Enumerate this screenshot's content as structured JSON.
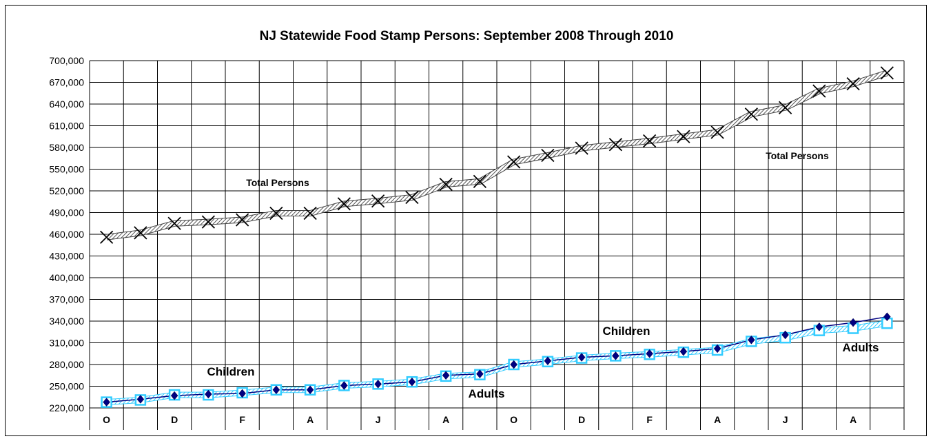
{
  "chart_data": {
    "type": "line",
    "title": "NJ Statewide Food Stamp Persons: September 2008 Through 2010",
    "xlabel": "",
    "ylabel": "",
    "ylim": [
      220000,
      700000
    ],
    "yticks": [
      "700,000",
      "670,000",
      "640,000",
      "610,000",
      "580,000",
      "550,000",
      "520,000",
      "490,000",
      "460,000",
      "430,000",
      "400,000",
      "370,000",
      "340,000",
      "310,000",
      "280,000",
      "250,000",
      "220,000"
    ],
    "categories": [
      "O",
      "",
      "D",
      "",
      "F",
      "",
      "A",
      "",
      "J",
      "",
      "A",
      "",
      "O",
      "",
      "D",
      "",
      "F",
      "",
      "A",
      "",
      "J",
      "",
      "A",
      ""
    ],
    "grid": true,
    "legend": "none",
    "series": [
      {
        "name": "Total Persons",
        "color": "#888888",
        "marker": "x",
        "values": [
          456000,
          462000,
          475000,
          477000,
          480000,
          489000,
          489000,
          502000,
          506000,
          511000,
          529000,
          533000,
          560000,
          569000,
          579000,
          584000,
          589000,
          595000,
          601000,
          626000,
          635000,
          658000,
          668000,
          683000
        ]
      },
      {
        "name": "Children",
        "color": "#000080",
        "marker": "diamond",
        "values": [
          228000,
          232000,
          237000,
          239000,
          240000,
          245000,
          245000,
          251000,
          253000,
          256000,
          265000,
          267000,
          280000,
          285000,
          290000,
          292000,
          295000,
          298000,
          302000,
          314000,
          321000,
          332000,
          338000,
          346000
        ]
      },
      {
        "name": "Adults",
        "color": "#33ccff",
        "marker": "square",
        "values": [
          228000,
          231000,
          238000,
          238000,
          241000,
          245000,
          245000,
          251000,
          253000,
          256000,
          264000,
          266000,
          280000,
          284000,
          289000,
          292000,
          294000,
          297000,
          300000,
          312000,
          317000,
          327000,
          330000,
          337000
        ]
      }
    ],
    "annotations": [
      {
        "text": "Total Persons",
        "near": "Total Persons",
        "size": "small"
      },
      {
        "text": "Total Persons",
        "near": "Total Persons",
        "size": "small"
      },
      {
        "text": "Children",
        "near": "Children",
        "size": "large"
      },
      {
        "text": "Children",
        "near": "Children",
        "size": "large"
      },
      {
        "text": "Adults",
        "near": "Adults",
        "size": "large"
      },
      {
        "text": "Adults",
        "near": "Adults",
        "size": "large"
      }
    ]
  }
}
